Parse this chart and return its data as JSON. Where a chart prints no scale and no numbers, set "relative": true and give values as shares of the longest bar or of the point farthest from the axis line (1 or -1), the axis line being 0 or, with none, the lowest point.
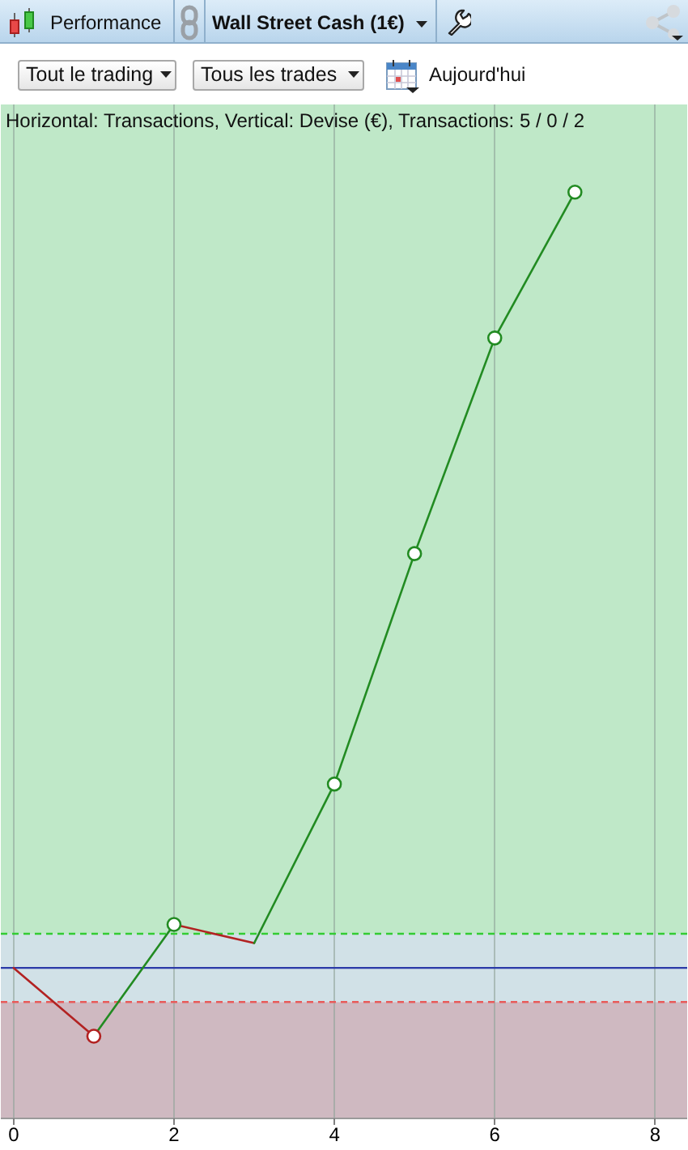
{
  "chart_data": {
    "type": "line",
    "title": "Horizontal: Transactions, Vertical: Devise (€), Transactions: 5 / 0 / 2",
    "relative": true,
    "annotations": [
      "Performance",
      "Wall Street Cash (1€)",
      "Tout le trading",
      "Tous les trades",
      "Aujourd'hui"
    ],
    "series": [
      {
        "color": "#b22222",
        "x": [
          0,
          1
        ],
        "values": [
          0,
          -0.088
        ]
      },
      {
        "color": "#228b22",
        "x": [
          1,
          2
        ],
        "values": [
          -0.088,
          0.056
        ]
      },
      {
        "color": "#b22222",
        "x": [
          2,
          3
        ],
        "values": [
          0.056,
          0.032
        ]
      },
      {
        "color": "#228b22",
        "x": [
          3,
          4,
          5,
          6,
          7
        ],
        "values": [
          0.032,
          0.237,
          0.534,
          0.812,
          1
        ]
      },
      {
        "type": "scatter",
        "marker": "circle",
        "x": [
          1,
          2,
          4,
          5,
          6,
          7
        ],
        "colors": [
          "#b22222",
          "#228b22",
          "#228b22",
          "#228b22",
          "#228b22",
          "#228b22"
        ],
        "values": [
          -0.088,
          0.056,
          0.237,
          0.534,
          0.812,
          1
        ]
      }
    ],
    "xlim": [
      -0.16,
      8.4
    ],
    "xticks": [
      0,
      2,
      4,
      6,
      8
    ],
    "grid": "x",
    "tick_labels": "x",
    "ref_lines": [
      {
        "axis": "y",
        "value": 0,
        "color": "#2b3aa8",
        "line_style": "solid"
      },
      {
        "axis": "y",
        "value": 0.044,
        "color": "#33cc33",
        "line_style": "dashed"
      },
      {
        "axis": "y",
        "value": -0.044,
        "color": "#e85a5a",
        "line_style": "dashed"
      }
    ],
    "bands": [
      {
        "axis": "y",
        "from": 0.044,
        "to": 1.113,
        "color": "#bfe8c8"
      },
      {
        "axis": "y",
        "from": -0.044,
        "to": 0.044,
        "color": "#d1e1e7"
      },
      {
        "axis": "y",
        "from": -0.194,
        "to": -0.044,
        "color": "#cfb9c1"
      }
    ]
  }
}
